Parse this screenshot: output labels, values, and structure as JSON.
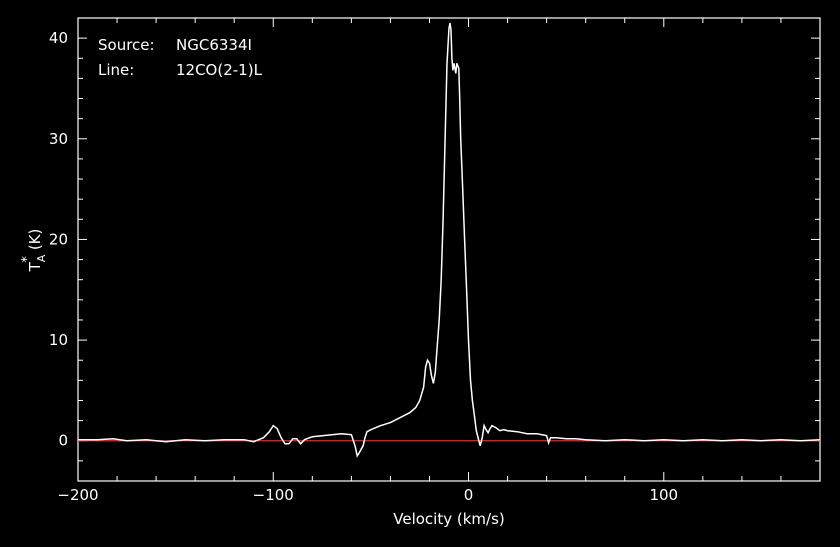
{
  "chart_data": {
    "type": "line",
    "title": "",
    "annotations": {
      "source_label": "Source:",
      "source_value": "NGC6334I",
      "line_label": "Line:",
      "line_value": "12CO(2-1)L"
    },
    "xlabel": "Velocity (km/s)",
    "ylabel_main": "T",
    "ylabel_sup": "*",
    "ylabel_sub": "A",
    "ylabel_unit": "(K)",
    "xlim": [
      -200,
      180
    ],
    "ylim": [
      -4,
      42
    ],
    "x_ticks": [
      -200,
      -100,
      0,
      100
    ],
    "x_tick_labels": [
      "−200",
      "−100",
      "0",
      "100"
    ],
    "y_ticks": [
      0,
      10,
      20,
      30,
      40
    ],
    "y_tick_labels": [
      "0",
      "10",
      "20",
      "30",
      "40"
    ],
    "grid": false,
    "baseline": {
      "y": 0,
      "color": "#ff2020"
    },
    "series": [
      {
        "color": "#ffffff",
        "points": [
          [
            -200,
            0.1
          ],
          [
            -190,
            0.1
          ],
          [
            -182,
            0.2
          ],
          [
            -175,
            0.0
          ],
          [
            -165,
            0.1
          ],
          [
            -155,
            -0.1
          ],
          [
            -145,
            0.1
          ],
          [
            -135,
            0.0
          ],
          [
            -125,
            0.1
          ],
          [
            -115,
            0.1
          ],
          [
            -110,
            -0.1
          ],
          [
            -105,
            0.3
          ],
          [
            -102,
            0.9
          ],
          [
            -100,
            1.5
          ],
          [
            -98,
            1.2
          ],
          [
            -96,
            0.3
          ],
          [
            -94,
            -0.3
          ],
          [
            -92,
            -0.3
          ],
          [
            -90,
            0.2
          ],
          [
            -88,
            0.2
          ],
          [
            -86,
            -0.3
          ],
          [
            -84,
            0.1
          ],
          [
            -80,
            0.4
          ],
          [
            -75,
            0.5
          ],
          [
            -70,
            0.6
          ],
          [
            -65,
            0.7
          ],
          [
            -60,
            0.6
          ],
          [
            -58,
            -0.6
          ],
          [
            -57,
            -1.5
          ],
          [
            -56,
            -1.2
          ],
          [
            -54,
            -0.5
          ],
          [
            -53,
            0.3
          ],
          [
            -52,
            0.9
          ],
          [
            -50,
            1.1
          ],
          [
            -45,
            1.5
          ],
          [
            -40,
            1.8
          ],
          [
            -35,
            2.3
          ],
          [
            -30,
            2.8
          ],
          [
            -27,
            3.3
          ],
          [
            -25,
            4.0
          ],
          [
            -23,
            5.3
          ],
          [
            -22,
            7.3
          ],
          [
            -21,
            8.0
          ],
          [
            -20,
            7.7
          ],
          [
            -19,
            6.5
          ],
          [
            -18,
            5.7
          ],
          [
            -17,
            6.8
          ],
          [
            -16,
            9.5
          ],
          [
            -15,
            12.0
          ],
          [
            -14,
            16.0
          ],
          [
            -13,
            22.0
          ],
          [
            -12,
            30.0
          ],
          [
            -11,
            37.5
          ],
          [
            -10,
            41.0
          ],
          [
            -9.5,
            41.5
          ],
          [
            -9,
            40.8
          ],
          [
            -8.5,
            38.0
          ],
          [
            -8,
            36.8
          ],
          [
            -7.5,
            37.5
          ],
          [
            -7,
            37.0
          ],
          [
            -6.5,
            36.5
          ],
          [
            -6,
            37.5
          ],
          [
            -5,
            37.0
          ],
          [
            -4.5,
            34.0
          ],
          [
            -4,
            30.0
          ],
          [
            -3,
            25.0
          ],
          [
            -2,
            20.0
          ],
          [
            -1,
            15.0
          ],
          [
            0,
            10.0
          ],
          [
            1,
            6.0
          ],
          [
            2,
            4.0
          ],
          [
            3,
            2.5
          ],
          [
            4,
            1.0
          ],
          [
            5,
            0.2
          ],
          [
            6,
            -0.5
          ],
          [
            7,
            0.3
          ],
          [
            8,
            1.5
          ],
          [
            9,
            1.1
          ],
          [
            10,
            0.8
          ],
          [
            11,
            1.2
          ],
          [
            12,
            1.5
          ],
          [
            14,
            1.3
          ],
          [
            16,
            1.0
          ],
          [
            18,
            1.1
          ],
          [
            20,
            1.0
          ],
          [
            25,
            0.9
          ],
          [
            30,
            0.7
          ],
          [
            35,
            0.7
          ],
          [
            40,
            0.5
          ],
          [
            41,
            -0.2
          ],
          [
            42,
            0.3
          ],
          [
            45,
            0.3
          ],
          [
            50,
            0.2
          ],
          [
            55,
            0.2
          ],
          [
            60,
            0.1
          ],
          [
            70,
            0.0
          ],
          [
            80,
            0.1
          ],
          [
            90,
            0.0
          ],
          [
            100,
            0.1
          ],
          [
            110,
            0.0
          ],
          [
            120,
            0.1
          ],
          [
            130,
            0.0
          ],
          [
            140,
            0.1
          ],
          [
            150,
            0.0
          ],
          [
            160,
            0.1
          ],
          [
            170,
            0.0
          ],
          [
            180,
            0.1
          ]
        ]
      }
    ]
  }
}
